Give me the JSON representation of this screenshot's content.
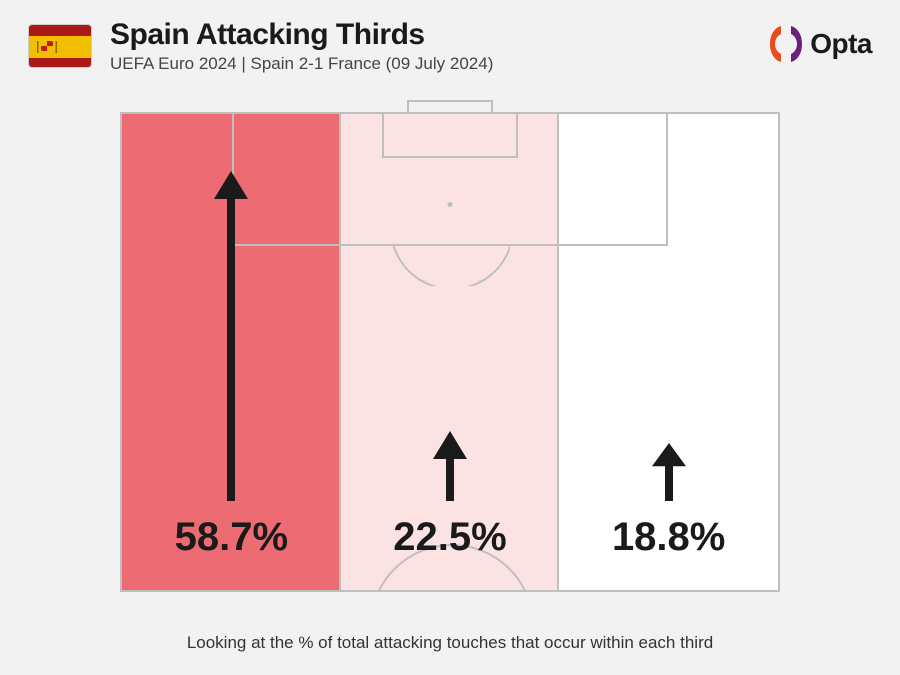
{
  "header": {
    "title": "Spain Attacking Thirds",
    "subtitle": "UEFA Euro 2024 | Spain 2-1 France (09 July 2024)",
    "logo_text": "Opta"
  },
  "flag": {
    "country": "Spain",
    "stripes": [
      "#aa1818",
      "#f1bf00",
      "#aa1818"
    ],
    "stripe_heights": [
      0.25,
      0.5,
      0.25
    ]
  },
  "logo_colors": {
    "left": "#e84e1b",
    "right": "#6b1f7a"
  },
  "caption": "Looking at the % of total attacking touches that occur within each third",
  "chart": {
    "type": "pitch-thirds-heatmap",
    "background_color": "#f2f2f2",
    "pitch_border_color": "#bfbfbf",
    "pitch_bg_color": "#ffffff",
    "arrow_color": "#1a1a1a",
    "pct_fontsize": 40,
    "title_fontsize": 30,
    "subtitle_fontsize": 17,
    "caption_fontsize": 17,
    "thirds": [
      {
        "label": "Left",
        "value": 58.7,
        "fill": "#ed6b72",
        "arrow_height": 330
      },
      {
        "label": "Centre",
        "value": 22.5,
        "fill": "#fbe3e4",
        "arrow_height": 70
      },
      {
        "label": "Right",
        "value": 18.8,
        "fill": "#ffffff",
        "arrow_height": 58
      }
    ]
  }
}
